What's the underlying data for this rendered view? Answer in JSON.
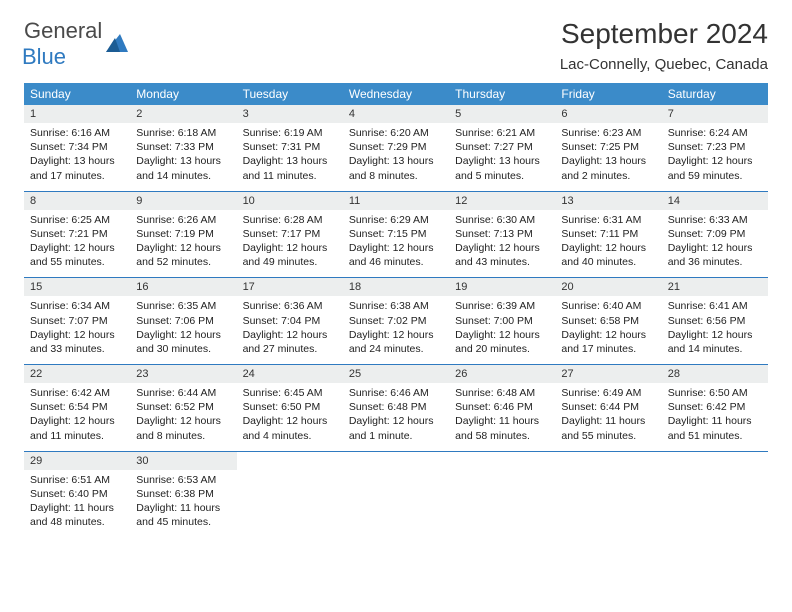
{
  "logo": {
    "text1": "General",
    "text2": "Blue"
  },
  "title": "September 2024",
  "location": "Lac-Connelly, Quebec, Canada",
  "header_bg": "#3b8bc9",
  "week_border": "#2f7ac0",
  "daynum_bg": "#eceeee",
  "dayHeaders": [
    "Sunday",
    "Monday",
    "Tuesday",
    "Wednesday",
    "Thursday",
    "Friday",
    "Saturday"
  ],
  "weeks": [
    [
      {
        "n": "1",
        "sr": "Sunrise: 6:16 AM",
        "ss": "Sunset: 7:34 PM",
        "d1": "Daylight: 13 hours",
        "d2": "and 17 minutes."
      },
      {
        "n": "2",
        "sr": "Sunrise: 6:18 AM",
        "ss": "Sunset: 7:33 PM",
        "d1": "Daylight: 13 hours",
        "d2": "and 14 minutes."
      },
      {
        "n": "3",
        "sr": "Sunrise: 6:19 AM",
        "ss": "Sunset: 7:31 PM",
        "d1": "Daylight: 13 hours",
        "d2": "and 11 minutes."
      },
      {
        "n": "4",
        "sr": "Sunrise: 6:20 AM",
        "ss": "Sunset: 7:29 PM",
        "d1": "Daylight: 13 hours",
        "d2": "and 8 minutes."
      },
      {
        "n": "5",
        "sr": "Sunrise: 6:21 AM",
        "ss": "Sunset: 7:27 PM",
        "d1": "Daylight: 13 hours",
        "d2": "and 5 minutes."
      },
      {
        "n": "6",
        "sr": "Sunrise: 6:23 AM",
        "ss": "Sunset: 7:25 PM",
        "d1": "Daylight: 13 hours",
        "d2": "and 2 minutes."
      },
      {
        "n": "7",
        "sr": "Sunrise: 6:24 AM",
        "ss": "Sunset: 7:23 PM",
        "d1": "Daylight: 12 hours",
        "d2": "and 59 minutes."
      }
    ],
    [
      {
        "n": "8",
        "sr": "Sunrise: 6:25 AM",
        "ss": "Sunset: 7:21 PM",
        "d1": "Daylight: 12 hours",
        "d2": "and 55 minutes."
      },
      {
        "n": "9",
        "sr": "Sunrise: 6:26 AM",
        "ss": "Sunset: 7:19 PM",
        "d1": "Daylight: 12 hours",
        "d2": "and 52 minutes."
      },
      {
        "n": "10",
        "sr": "Sunrise: 6:28 AM",
        "ss": "Sunset: 7:17 PM",
        "d1": "Daylight: 12 hours",
        "d2": "and 49 minutes."
      },
      {
        "n": "11",
        "sr": "Sunrise: 6:29 AM",
        "ss": "Sunset: 7:15 PM",
        "d1": "Daylight: 12 hours",
        "d2": "and 46 minutes."
      },
      {
        "n": "12",
        "sr": "Sunrise: 6:30 AM",
        "ss": "Sunset: 7:13 PM",
        "d1": "Daylight: 12 hours",
        "d2": "and 43 minutes."
      },
      {
        "n": "13",
        "sr": "Sunrise: 6:31 AM",
        "ss": "Sunset: 7:11 PM",
        "d1": "Daylight: 12 hours",
        "d2": "and 40 minutes."
      },
      {
        "n": "14",
        "sr": "Sunrise: 6:33 AM",
        "ss": "Sunset: 7:09 PM",
        "d1": "Daylight: 12 hours",
        "d2": "and 36 minutes."
      }
    ],
    [
      {
        "n": "15",
        "sr": "Sunrise: 6:34 AM",
        "ss": "Sunset: 7:07 PM",
        "d1": "Daylight: 12 hours",
        "d2": "and 33 minutes."
      },
      {
        "n": "16",
        "sr": "Sunrise: 6:35 AM",
        "ss": "Sunset: 7:06 PM",
        "d1": "Daylight: 12 hours",
        "d2": "and 30 minutes."
      },
      {
        "n": "17",
        "sr": "Sunrise: 6:36 AM",
        "ss": "Sunset: 7:04 PM",
        "d1": "Daylight: 12 hours",
        "d2": "and 27 minutes."
      },
      {
        "n": "18",
        "sr": "Sunrise: 6:38 AM",
        "ss": "Sunset: 7:02 PM",
        "d1": "Daylight: 12 hours",
        "d2": "and 24 minutes."
      },
      {
        "n": "19",
        "sr": "Sunrise: 6:39 AM",
        "ss": "Sunset: 7:00 PM",
        "d1": "Daylight: 12 hours",
        "d2": "and 20 minutes."
      },
      {
        "n": "20",
        "sr": "Sunrise: 6:40 AM",
        "ss": "Sunset: 6:58 PM",
        "d1": "Daylight: 12 hours",
        "d2": "and 17 minutes."
      },
      {
        "n": "21",
        "sr": "Sunrise: 6:41 AM",
        "ss": "Sunset: 6:56 PM",
        "d1": "Daylight: 12 hours",
        "d2": "and 14 minutes."
      }
    ],
    [
      {
        "n": "22",
        "sr": "Sunrise: 6:42 AM",
        "ss": "Sunset: 6:54 PM",
        "d1": "Daylight: 12 hours",
        "d2": "and 11 minutes."
      },
      {
        "n": "23",
        "sr": "Sunrise: 6:44 AM",
        "ss": "Sunset: 6:52 PM",
        "d1": "Daylight: 12 hours",
        "d2": "and 8 minutes."
      },
      {
        "n": "24",
        "sr": "Sunrise: 6:45 AM",
        "ss": "Sunset: 6:50 PM",
        "d1": "Daylight: 12 hours",
        "d2": "and 4 minutes."
      },
      {
        "n": "25",
        "sr": "Sunrise: 6:46 AM",
        "ss": "Sunset: 6:48 PM",
        "d1": "Daylight: 12 hours",
        "d2": "and 1 minute."
      },
      {
        "n": "26",
        "sr": "Sunrise: 6:48 AM",
        "ss": "Sunset: 6:46 PM",
        "d1": "Daylight: 11 hours",
        "d2": "and 58 minutes."
      },
      {
        "n": "27",
        "sr": "Sunrise: 6:49 AM",
        "ss": "Sunset: 6:44 PM",
        "d1": "Daylight: 11 hours",
        "d2": "and 55 minutes."
      },
      {
        "n": "28",
        "sr": "Sunrise: 6:50 AM",
        "ss": "Sunset: 6:42 PM",
        "d1": "Daylight: 11 hours",
        "d2": "and 51 minutes."
      }
    ],
    [
      {
        "n": "29",
        "sr": "Sunrise: 6:51 AM",
        "ss": "Sunset: 6:40 PM",
        "d1": "Daylight: 11 hours",
        "d2": "and 48 minutes."
      },
      {
        "n": "30",
        "sr": "Sunrise: 6:53 AM",
        "ss": "Sunset: 6:38 PM",
        "d1": "Daylight: 11 hours",
        "d2": "and 45 minutes."
      },
      null,
      null,
      null,
      null,
      null
    ]
  ]
}
